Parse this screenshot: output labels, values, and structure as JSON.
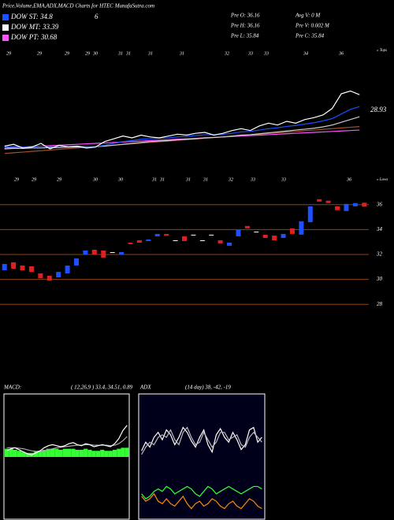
{
  "header": {
    "title": "Price,Volume,EMA,ADX,MACD Charts for HTEC MunafaSutra.com",
    "legend": [
      {
        "label": "DOW ST: 34.8",
        "color": "#1e50ff"
      },
      {
        "label": "DOW MT: 33.39",
        "color": "#ffffff"
      },
      {
        "label": "DOW PT: 30.68",
        "color": "#ff55ff"
      }
    ],
    "extra": "6",
    "stats": [
      "Pre O: 36.16",
      "Avg V: 0 M",
      "Pre H: 36.16",
      "Pre V: 0.002 M",
      "Pre L: 35.84",
      "Pre C: 35.84"
    ]
  },
  "chart_data": [
    {
      "type": "line",
      "annotation": "28.93",
      "side_label": "« Tops",
      "x_labels": [
        "29",
        "29",
        "29",
        "29",
        "30",
        "31",
        "31",
        "31",
        "31",
        "32",
        "33",
        "33",
        "34",
        "36"
      ],
      "ylim": [
        23,
        35
      ],
      "series": [
        {
          "color": "#a0522d",
          "values": [
            24.3,
            24.38,
            24.45,
            24.53,
            24.6,
            24.68,
            24.75,
            24.83,
            24.9,
            24.98,
            25.05,
            25.13,
            25.2,
            25.28,
            25.35,
            25.43,
            25.5,
            25.58,
            25.65,
            25.73,
            25.8,
            25.88,
            25.95,
            26.03,
            26.1,
            26.18,
            26.25,
            26.33,
            26.4,
            26.48,
            26.55,
            26.63,
            26.7,
            26.78,
            26.85,
            26.93,
            27.0,
            27.08,
            27.15,
            27.23
          ]
        },
        {
          "color": "#ff55ff",
          "values": [
            24.9,
            24.95,
            25.0,
            25.05,
            25.1,
            25.15,
            25.2,
            25.25,
            25.3,
            25.35,
            25.4,
            25.45,
            25.5,
            25.55,
            25.6,
            25.65,
            25.7,
            25.75,
            25.8,
            25.85,
            25.9,
            25.95,
            26.0,
            26.05,
            26.1,
            26.15,
            26.2,
            26.25,
            26.3,
            26.35,
            26.4,
            26.45,
            26.5,
            26.55,
            26.6,
            26.65,
            26.7,
            26.75,
            26.8,
            26.85
          ]
        },
        {
          "color": "#cccccc",
          "values": [
            24.8,
            24.85,
            24.85,
            24.9,
            24.9,
            24.95,
            24.95,
            25.0,
            25.0,
            25.05,
            25.05,
            25.1,
            25.2,
            25.3,
            25.4,
            25.5,
            25.6,
            25.65,
            25.7,
            25.8,
            25.85,
            25.9,
            26.0,
            26.05,
            26.1,
            26.2,
            26.3,
            26.35,
            26.45,
            26.55,
            26.65,
            26.75,
            26.85,
            26.95,
            27.05,
            27.2,
            27.4,
            27.7,
            28.0,
            28.3
          ]
        },
        {
          "color": "#1e50ff",
          "values": [
            25.0,
            25.05,
            25.0,
            25.0,
            25.1,
            25.05,
            25.1,
            25.1,
            25.1,
            25.05,
            25.05,
            25.2,
            25.4,
            25.6,
            25.7,
            25.85,
            25.9,
            25.95,
            26.0,
            26.1,
            26.15,
            26.25,
            26.35,
            26.35,
            26.4,
            26.5,
            26.65,
            26.7,
            26.85,
            27.0,
            27.1,
            27.25,
            27.35,
            27.5,
            27.65,
            27.85,
            28.1,
            28.6,
            29.1,
            29.4
          ]
        },
        {
          "color": "#ffffff",
          "values": [
            25.1,
            25.3,
            24.9,
            25.0,
            25.4,
            24.8,
            25.2,
            25.0,
            25.1,
            24.9,
            25.0,
            25.6,
            25.9,
            26.2,
            26.0,
            26.3,
            26.1,
            26.0,
            26.2,
            26.4,
            26.3,
            26.5,
            26.6,
            26.3,
            26.5,
            26.8,
            27.0,
            26.8,
            27.3,
            27.6,
            27.4,
            27.8,
            27.6,
            28.0,
            28.2,
            28.5,
            29.2,
            30.8,
            31.1,
            30.7
          ]
        }
      ]
    },
    {
      "type": "candlestick",
      "side_label": "« Lows",
      "x_labels": [
        "29",
        "29",
        "29",
        "30",
        "30",
        "31",
        "31",
        "31",
        "31",
        "32",
        "33",
        "33",
        "36"
      ],
      "ylim": [
        27,
        37
      ],
      "yticks": [
        36,
        34,
        32,
        30,
        28
      ],
      "grid": true,
      "grid_color": "#8b4513",
      "up_color": "#1e50ff",
      "down_color": "#e02020",
      "flat_color": "#ffffff",
      "open": [
        30.73,
        31.37,
        31.11,
        31.05,
        30.48,
        30.29,
        30.16,
        30.48,
        31.11,
        32.0,
        32.38,
        32.32,
        32.19,
        32.0,
        32.95,
        33.14,
        33.08,
        33.46,
        33.65,
        33.14,
        33.46,
        33.59,
        33.14,
        33.59,
        33.14,
        32.7,
        33.46,
        34.29,
        33.84,
        33.59,
        33.52,
        33.33,
        34.1,
        33.59,
        34.6,
        36.44,
        36.32,
        35.87,
        35.49,
        35.87,
        36.16
      ],
      "close": [
        31.24,
        30.86,
        30.73,
        30.6,
        30.1,
        29.9,
        30.6,
        31.11,
        31.68,
        32.32,
        32.0,
        31.75,
        32.19,
        32.19,
        32.83,
        32.95,
        33.21,
        33.65,
        33.52,
        33.14,
        33.08,
        33.59,
        33.14,
        33.59,
        32.89,
        32.95,
        33.97,
        34.1,
        33.84,
        33.33,
        33.14,
        33.65,
        33.65,
        34.67,
        35.87,
        36.25,
        36.13,
        35.56,
        36.06,
        36.13,
        35.84
      ]
    },
    {
      "type": "macd",
      "title": "MACD:",
      "params": "( 12,26,9 ) 33.4, 34.51, 0.89",
      "ylim": [
        -6,
        6
      ],
      "bar_color": "#33ff33",
      "bars": [
        0.8,
        0.8,
        0.7,
        0.6,
        0.5,
        0.4,
        0.4,
        0.5,
        0.6,
        0.7,
        0.8,
        0.8,
        0.8,
        0.7,
        0.8,
        0.8,
        0.8,
        0.7,
        0.7,
        0.8,
        0.7,
        0.6,
        0.6,
        0.7,
        0.6,
        0.6,
        0.7,
        0.8,
        0.9,
        0.9
      ],
      "series": [
        {
          "color": "#aaaaaa",
          "values": [
            0.9,
            0.9,
            0.9,
            0.85,
            0.8,
            0.7,
            0.6,
            0.55,
            0.55,
            0.6,
            0.7,
            0.8,
            0.9,
            0.95,
            1.0,
            1.05,
            1.1,
            1.15,
            1.15,
            1.2,
            1.2,
            1.15,
            1.15,
            1.15,
            1.15,
            1.1,
            1.15,
            1.3,
            1.6,
            2.0
          ]
        },
        {
          "color": "#ffffff",
          "values": [
            0.6,
            0.8,
            0.9,
            0.7,
            0.5,
            0.3,
            0.2,
            0.4,
            0.6,
            0.9,
            1.1,
            1.2,
            1.1,
            1.0,
            1.1,
            1.3,
            1.4,
            1.2,
            1.1,
            1.3,
            1.2,
            1.0,
            1.1,
            1.2,
            1.1,
            1.0,
            1.3,
            1.8,
            2.6,
            3.1
          ]
        }
      ]
    },
    {
      "type": "line",
      "title": "ADX",
      "params": "(14 day) 38, -42, -19",
      "ylim": [
        0,
        100
      ],
      "series": [
        {
          "color": "#ffffff",
          "values": [
            55,
            62,
            58,
            66,
            70,
            64,
            72,
            68,
            60,
            66,
            74,
            70,
            63,
            58,
            66,
            72,
            60,
            54,
            68,
            73,
            66,
            62,
            70,
            64,
            56,
            60,
            72,
            74,
            62,
            66
          ]
        },
        {
          "color": "#bbbbbb",
          "values": [
            52,
            58,
            62,
            60,
            66,
            68,
            66,
            72,
            64,
            60,
            70,
            74,
            66,
            60,
            62,
            70,
            64,
            58,
            62,
            70,
            70,
            64,
            66,
            68,
            60,
            58,
            66,
            70,
            66,
            62
          ]
        },
        {
          "color": "#33ff33",
          "values": [
            20,
            16,
            18,
            22,
            24,
            22,
            26,
            24,
            20,
            22,
            24,
            26,
            24,
            20,
            18,
            22,
            26,
            24,
            20,
            22,
            24,
            26,
            24,
            22,
            20,
            22,
            24,
            26,
            26,
            24
          ]
        },
        {
          "color": "#ff8c00",
          "values": [
            18,
            14,
            16,
            20,
            14,
            12,
            16,
            12,
            10,
            14,
            18,
            12,
            8,
            12,
            14,
            10,
            12,
            16,
            14,
            10,
            8,
            12,
            14,
            10,
            8,
            12,
            16,
            14,
            10,
            8
          ]
        }
      ]
    }
  ]
}
